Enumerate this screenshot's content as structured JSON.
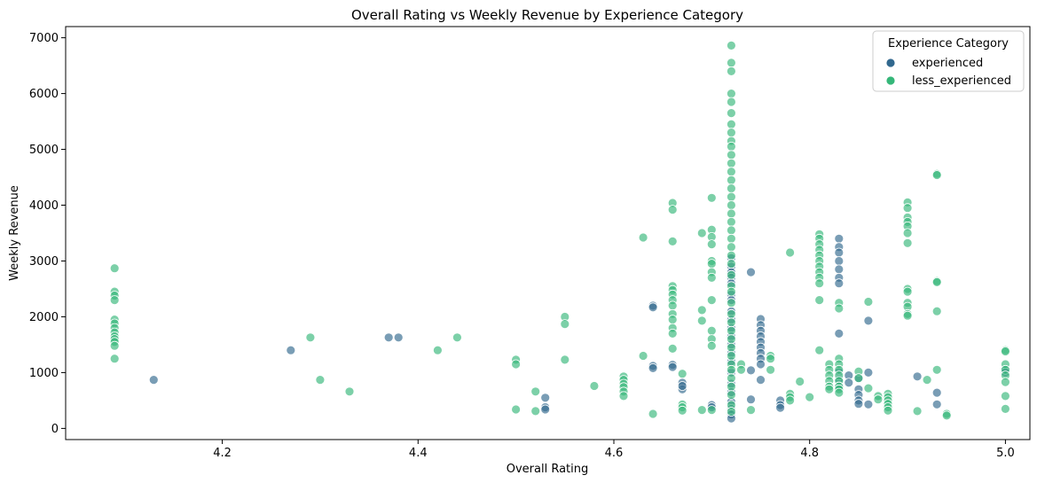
{
  "chart_data": {
    "type": "scatter",
    "title": "Overall Rating vs Weekly Revenue by Experience Category",
    "xlabel": "Overall Rating",
    "ylabel": "Weekly Revenue",
    "xlim": [
      4.04,
      5.025
    ],
    "ylim": [
      -200,
      7200
    ],
    "x_ticks": [
      4.2,
      4.4,
      4.6,
      4.8,
      5.0
    ],
    "x_tick_labels": [
      "4.2",
      "4.4",
      "4.6",
      "4.8",
      "5.0"
    ],
    "y_ticks": [
      0,
      1000,
      2000,
      3000,
      4000,
      5000,
      6000,
      7000
    ],
    "y_tick_labels": [
      "0",
      "1000",
      "2000",
      "3000",
      "4000",
      "5000",
      "6000",
      "7000"
    ],
    "grid": false,
    "legend": {
      "title": "Experience Category",
      "position": "top-right"
    },
    "series": [
      {
        "name": "experienced",
        "color": "#31688e",
        "points": [
          [
            4.13,
            870
          ],
          [
            4.27,
            1400
          ],
          [
            4.37,
            1630
          ],
          [
            4.38,
            1630
          ],
          [
            4.53,
            550
          ],
          [
            4.53,
            380
          ],
          [
            4.53,
            340
          ],
          [
            4.64,
            2200
          ],
          [
            4.64,
            2170
          ],
          [
            4.64,
            1120
          ],
          [
            4.64,
            1080
          ],
          [
            4.66,
            1140
          ],
          [
            4.66,
            1100
          ],
          [
            4.67,
            820
          ],
          [
            4.67,
            700
          ],
          [
            4.67,
            760
          ],
          [
            4.7,
            420
          ],
          [
            4.7,
            380
          ],
          [
            4.72,
            3050
          ],
          [
            4.72,
            2900
          ],
          [
            4.72,
            2800
          ],
          [
            4.72,
            2700
          ],
          [
            4.72,
            2600
          ],
          [
            4.72,
            2400
          ],
          [
            4.72,
            2300
          ],
          [
            4.72,
            2100
          ],
          [
            4.72,
            1950
          ],
          [
            4.72,
            1800
          ],
          [
            4.72,
            1650
          ],
          [
            4.72,
            1500
          ],
          [
            4.72,
            1350
          ],
          [
            4.72,
            1200
          ],
          [
            4.72,
            1000
          ],
          [
            4.72,
            800
          ],
          [
            4.72,
            650
          ],
          [
            4.72,
            480
          ],
          [
            4.72,
            350
          ],
          [
            4.72,
            250
          ],
          [
            4.72,
            180
          ],
          [
            4.74,
            2800
          ],
          [
            4.74,
            1040
          ],
          [
            4.74,
            520
          ],
          [
            4.75,
            1960
          ],
          [
            4.75,
            1850
          ],
          [
            4.75,
            1750
          ],
          [
            4.75,
            1650
          ],
          [
            4.75,
            1550
          ],
          [
            4.75,
            1450
          ],
          [
            4.75,
            1350
          ],
          [
            4.75,
            1250
          ],
          [
            4.75,
            1150
          ],
          [
            4.75,
            870
          ],
          [
            4.77,
            500
          ],
          [
            4.77,
            420
          ],
          [
            4.77,
            370
          ],
          [
            4.83,
            3400
          ],
          [
            4.83,
            3250
          ],
          [
            4.83,
            3150
          ],
          [
            4.83,
            3000
          ],
          [
            4.83,
            2850
          ],
          [
            4.83,
            2700
          ],
          [
            4.83,
            2600
          ],
          [
            4.83,
            1700
          ],
          [
            4.83,
            1020
          ],
          [
            4.83,
            880
          ],
          [
            4.83,
            760
          ],
          [
            4.84,
            950
          ],
          [
            4.84,
            820
          ],
          [
            4.85,
            900
          ],
          [
            4.85,
            700
          ],
          [
            4.85,
            600
          ],
          [
            4.85,
            500
          ],
          [
            4.85,
            440
          ],
          [
            4.86,
            1930
          ],
          [
            4.86,
            1000
          ],
          [
            4.86,
            430
          ],
          [
            4.91,
            930
          ],
          [
            4.93,
            640
          ],
          [
            4.93,
            430
          ],
          [
            5.0,
            1050
          ],
          [
            5.0,
            1000
          ]
        ]
      },
      {
        "name": "less_experienced",
        "color": "#35b779",
        "points": [
          [
            4.09,
            2870
          ],
          [
            4.09,
            2450
          ],
          [
            4.09,
            2380
          ],
          [
            4.09,
            2300
          ],
          [
            4.09,
            1950
          ],
          [
            4.09,
            1880
          ],
          [
            4.09,
            1800
          ],
          [
            4.09,
            1720
          ],
          [
            4.09,
            1650
          ],
          [
            4.09,
            1600
          ],
          [
            4.09,
            1550
          ],
          [
            4.09,
            1480
          ],
          [
            4.09,
            1250
          ],
          [
            4.29,
            1630
          ],
          [
            4.3,
            870
          ],
          [
            4.33,
            660
          ],
          [
            4.42,
            1400
          ],
          [
            4.44,
            1630
          ],
          [
            4.5,
            1230
          ],
          [
            4.5,
            1150
          ],
          [
            4.5,
            340
          ],
          [
            4.52,
            660
          ],
          [
            4.52,
            310
          ],
          [
            4.55,
            2000
          ],
          [
            4.55,
            1870
          ],
          [
            4.55,
            1230
          ],
          [
            4.58,
            760
          ],
          [
            4.61,
            930
          ],
          [
            4.61,
            870
          ],
          [
            4.61,
            800
          ],
          [
            4.61,
            740
          ],
          [
            4.61,
            660
          ],
          [
            4.61,
            580
          ],
          [
            4.63,
            3420
          ],
          [
            4.63,
            1300
          ],
          [
            4.64,
            260
          ],
          [
            4.66,
            4040
          ],
          [
            4.66,
            3920
          ],
          [
            4.66,
            3350
          ],
          [
            4.66,
            2550
          ],
          [
            4.66,
            2480
          ],
          [
            4.66,
            2400
          ],
          [
            4.66,
            2300
          ],
          [
            4.66,
            2200
          ],
          [
            4.66,
            2050
          ],
          [
            4.66,
            1950
          ],
          [
            4.66,
            1800
          ],
          [
            4.66,
            1700
          ],
          [
            4.66,
            1430
          ],
          [
            4.67,
            980
          ],
          [
            4.67,
            430
          ],
          [
            4.67,
            380
          ],
          [
            4.67,
            320
          ],
          [
            4.69,
            3500
          ],
          [
            4.69,
            2120
          ],
          [
            4.69,
            1930
          ],
          [
            4.69,
            330
          ],
          [
            4.7,
            4130
          ],
          [
            4.7,
            3560
          ],
          [
            4.7,
            3430
          ],
          [
            4.7,
            3300
          ],
          [
            4.7,
            3000
          ],
          [
            4.7,
            2950
          ],
          [
            4.7,
            2800
          ],
          [
            4.7,
            2700
          ],
          [
            4.7,
            2300
          ],
          [
            4.7,
            1750
          ],
          [
            4.7,
            1600
          ],
          [
            4.7,
            1480
          ],
          [
            4.7,
            330
          ],
          [
            4.72,
            6860
          ],
          [
            4.72,
            6550
          ],
          [
            4.72,
            6400
          ],
          [
            4.72,
            6000
          ],
          [
            4.72,
            5850
          ],
          [
            4.72,
            5650
          ],
          [
            4.72,
            5450
          ],
          [
            4.72,
            5300
          ],
          [
            4.72,
            5150
          ],
          [
            4.72,
            5050
          ],
          [
            4.72,
            4900
          ],
          [
            4.72,
            4750
          ],
          [
            4.72,
            4600
          ],
          [
            4.72,
            4450
          ],
          [
            4.72,
            4300
          ],
          [
            4.72,
            4150
          ],
          [
            4.72,
            4000
          ],
          [
            4.72,
            3850
          ],
          [
            4.72,
            3700
          ],
          [
            4.72,
            3550
          ],
          [
            4.72,
            3400
          ],
          [
            4.72,
            3250
          ],
          [
            4.72,
            3100
          ],
          [
            4.72,
            2950
          ],
          [
            4.72,
            2750
          ],
          [
            4.72,
            2550
          ],
          [
            4.72,
            2450
          ],
          [
            4.72,
            2250
          ],
          [
            4.72,
            2050
          ],
          [
            4.72,
            1900
          ],
          [
            4.72,
            1750
          ],
          [
            4.72,
            1600
          ],
          [
            4.72,
            1450
          ],
          [
            4.72,
            1300
          ],
          [
            4.72,
            1150
          ],
          [
            4.72,
            1050
          ],
          [
            4.72,
            900
          ],
          [
            4.72,
            750
          ],
          [
            4.72,
            600
          ],
          [
            4.72,
            420
          ],
          [
            4.72,
            300
          ],
          [
            4.73,
            1150
          ],
          [
            4.73,
            1050
          ],
          [
            4.74,
            330
          ],
          [
            4.76,
            1300
          ],
          [
            4.76,
            1250
          ],
          [
            4.76,
            1050
          ],
          [
            4.78,
            3150
          ],
          [
            4.78,
            620
          ],
          [
            4.78,
            560
          ],
          [
            4.78,
            500
          ],
          [
            4.79,
            840
          ],
          [
            4.8,
            560
          ],
          [
            4.81,
            3480
          ],
          [
            4.81,
            3400
          ],
          [
            4.81,
            3300
          ],
          [
            4.81,
            3200
          ],
          [
            4.81,
            3100
          ],
          [
            4.81,
            3000
          ],
          [
            4.81,
            2900
          ],
          [
            4.81,
            2800
          ],
          [
            4.81,
            2700
          ],
          [
            4.81,
            2600
          ],
          [
            4.81,
            2300
          ],
          [
            4.81,
            1400
          ],
          [
            4.82,
            1150
          ],
          [
            4.82,
            1050
          ],
          [
            4.82,
            950
          ],
          [
            4.82,
            850
          ],
          [
            4.82,
            750
          ],
          [
            4.82,
            700
          ],
          [
            4.83,
            2250
          ],
          [
            4.83,
            2150
          ],
          [
            4.83,
            1250
          ],
          [
            4.83,
            1150
          ],
          [
            4.83,
            1050
          ],
          [
            4.83,
            950
          ],
          [
            4.83,
            850
          ],
          [
            4.83,
            750
          ],
          [
            4.83,
            700
          ],
          [
            4.83,
            640
          ],
          [
            4.85,
            1020
          ],
          [
            4.85,
            900
          ],
          [
            4.86,
            2270
          ],
          [
            4.86,
            720
          ],
          [
            4.87,
            580
          ],
          [
            4.87,
            520
          ],
          [
            4.88,
            620
          ],
          [
            4.88,
            560
          ],
          [
            4.88,
            500
          ],
          [
            4.88,
            440
          ],
          [
            4.88,
            380
          ],
          [
            4.88,
            320
          ],
          [
            4.9,
            4050
          ],
          [
            4.9,
            3950
          ],
          [
            4.9,
            3780
          ],
          [
            4.9,
            3700
          ],
          [
            4.9,
            3620
          ],
          [
            4.9,
            3500
          ],
          [
            4.9,
            3320
          ],
          [
            4.9,
            2500
          ],
          [
            4.9,
            2450
          ],
          [
            4.9,
            2250
          ],
          [
            4.9,
            2180
          ],
          [
            4.9,
            2050
          ],
          [
            4.9,
            2020
          ],
          [
            4.91,
            310
          ],
          [
            4.92,
            870
          ],
          [
            4.93,
            4560
          ],
          [
            4.93,
            4540
          ],
          [
            4.93,
            2640
          ],
          [
            4.93,
            2620
          ],
          [
            4.93,
            2100
          ],
          [
            4.93,
            1050
          ],
          [
            4.94,
            260
          ],
          [
            4.94,
            230
          ],
          [
            5.0,
            1400
          ],
          [
            5.0,
            1380
          ],
          [
            5.0,
            1150
          ],
          [
            5.0,
            1050
          ],
          [
            5.0,
            950
          ],
          [
            5.0,
            830
          ],
          [
            5.0,
            580
          ],
          [
            5.0,
            350
          ]
        ]
      }
    ]
  }
}
